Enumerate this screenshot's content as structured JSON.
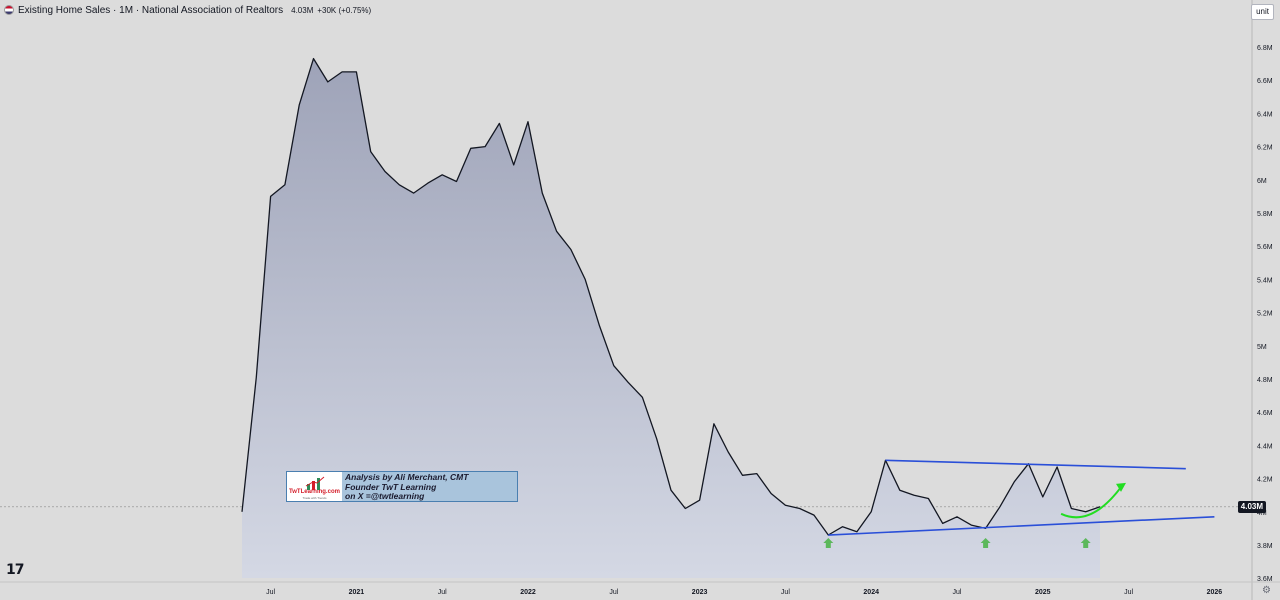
{
  "header": {
    "title": "Existing Home Sales · 1M · National Association of Realtors",
    "price": "4.03M",
    "change": "+30K (+0.75%)"
  },
  "unit_button": "unit",
  "last_price_badge": "4.03M",
  "annotation": {
    "line1": "Analysis by Ali Merchant, CMT",
    "line2": "Founder TwT Learning",
    "line3": "on X =@twtlearning",
    "logo_text": "TwTLearning.com",
    "logo_sub": "Trade with Trends"
  },
  "watermark": "17",
  "colors": {
    "background": "#dcdcdc",
    "line": "#131722",
    "area_top": "#9ea3b8",
    "area_bottom": "#d4d8e4",
    "trendline": "#2a4fd8",
    "curve_arrow": "#22dd22",
    "up_arrow": "#5cb85c"
  },
  "chart_data": {
    "type": "area",
    "title": "Existing Home Sales",
    "y_unit": "M",
    "ylim": [
      3.6,
      6.9
    ],
    "y_ticks": [
      "3.6M",
      "3.8M",
      "4M",
      "4.2M",
      "4.4M",
      "4.6M",
      "4.8M",
      "5M",
      "5.2M",
      "5.4M",
      "5.6M",
      "5.8M",
      "6M",
      "6.2M",
      "6.4M",
      "6.6M",
      "6.8M"
    ],
    "x_ticks": [
      "Jul",
      "2021",
      "Jul",
      "2022",
      "Jul",
      "2023",
      "Jul",
      "2024",
      "Jul",
      "2025",
      "Jul",
      "2026"
    ],
    "x": [
      "2020-05",
      "2020-06",
      "2020-07",
      "2020-08",
      "2020-09",
      "2020-10",
      "2020-11",
      "2020-12",
      "2021-01",
      "2021-02",
      "2021-03",
      "2021-04",
      "2021-05",
      "2021-06",
      "2021-07",
      "2021-08",
      "2021-09",
      "2021-10",
      "2021-11",
      "2021-12",
      "2022-01",
      "2022-02",
      "2022-03",
      "2022-04",
      "2022-05",
      "2022-06",
      "2022-07",
      "2022-08",
      "2022-09",
      "2022-10",
      "2022-11",
      "2022-12",
      "2023-01",
      "2023-02",
      "2023-03",
      "2023-04",
      "2023-05",
      "2023-06",
      "2023-07",
      "2023-08",
      "2023-09",
      "2023-10",
      "2023-11",
      "2023-12",
      "2024-01",
      "2024-02",
      "2024-03",
      "2024-04",
      "2024-05",
      "2024-06",
      "2024-07",
      "2024-08",
      "2024-09",
      "2024-10",
      "2024-11",
      "2024-12",
      "2025-01",
      "2025-02",
      "2025-03",
      "2025-04",
      "2025-05"
    ],
    "values": [
      4.0,
      4.81,
      5.9,
      5.97,
      6.45,
      6.73,
      6.59,
      6.65,
      6.65,
      6.17,
      6.05,
      5.97,
      5.92,
      5.98,
      6.03,
      5.99,
      6.19,
      6.2,
      6.34,
      6.09,
      6.35,
      5.92,
      5.69,
      5.58,
      5.4,
      5.12,
      4.88,
      4.78,
      4.69,
      4.44,
      4.13,
      4.02,
      4.07,
      4.53,
      4.36,
      4.22,
      4.23,
      4.11,
      4.04,
      4.02,
      3.98,
      3.86,
      3.91,
      3.88,
      4.0,
      4.31,
      4.13,
      4.1,
      4.08,
      3.93,
      3.97,
      3.92,
      3.9,
      4.03,
      4.18,
      4.29,
      4.09,
      4.27,
      4.02,
      4.0,
      4.03
    ],
    "last_value": 4.03,
    "annotations": {
      "upper_trendline": [
        [
          "2024-02",
          4.31
        ],
        [
          "2025-11",
          4.26
        ]
      ],
      "lower_trendline": [
        [
          "2023-10",
          3.86
        ],
        [
          "2026-01",
          3.97
        ]
      ],
      "up_arrows": [
        "2023-10",
        "2024-09",
        "2025-04"
      ],
      "curved_arrow": [
        [
          "2025-02",
          4.0
        ],
        [
          "2025-05",
          4.06
        ]
      ]
    }
  }
}
